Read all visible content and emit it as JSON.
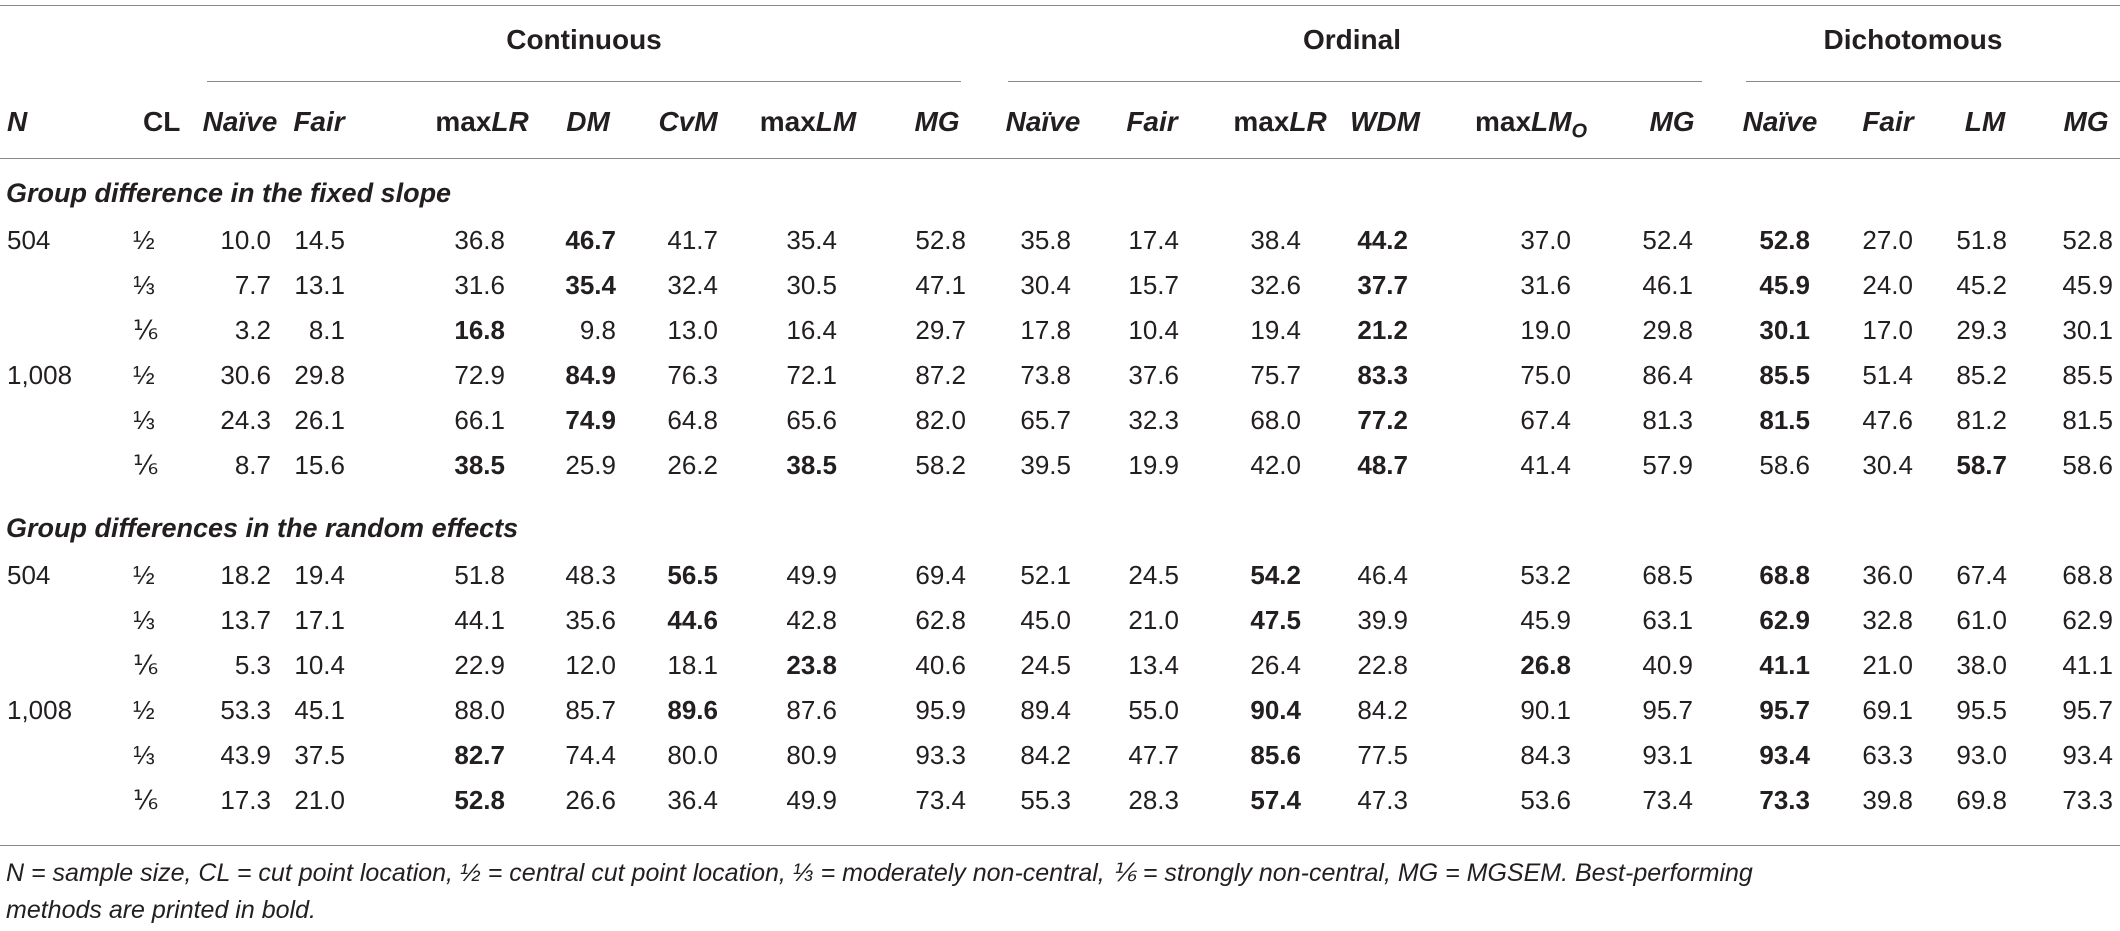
{
  "groups": [
    "Continuous",
    "Ordinal",
    "Dichotomous"
  ],
  "headers": [
    {
      "pre": "N",
      "it": "",
      "sub": "",
      "all_italic": true
    },
    {
      "pre": "CL",
      "it": "",
      "sub": "",
      "all_italic": false
    },
    {
      "pre": "",
      "it": "Naïve",
      "sub": "",
      "all_italic": true
    },
    {
      "pre": "",
      "it": "Fair",
      "sub": "",
      "all_italic": true
    },
    {
      "pre": "max",
      "it": "LR",
      "sub": "",
      "all_italic": false
    },
    {
      "pre": "",
      "it": "DM",
      "sub": "",
      "all_italic": true
    },
    {
      "pre": "",
      "it": "CvM",
      "sub": "",
      "all_italic": true
    },
    {
      "pre": "max",
      "it": "LM",
      "sub": "",
      "all_italic": false
    },
    {
      "pre": "",
      "it": "MG",
      "sub": "",
      "all_italic": true
    },
    {
      "pre": "",
      "it": "Naïve",
      "sub": "",
      "all_italic": true
    },
    {
      "pre": "",
      "it": "Fair",
      "sub": "",
      "all_italic": true
    },
    {
      "pre": "max",
      "it": "LR",
      "sub": "",
      "all_italic": false
    },
    {
      "pre": "",
      "it": "WDM",
      "sub": "",
      "all_italic": true
    },
    {
      "pre": "max",
      "it": "LM",
      "sub": "O",
      "all_italic": false
    },
    {
      "pre": "",
      "it": "MG",
      "sub": "",
      "all_italic": true
    },
    {
      "pre": "",
      "it": "Naïve",
      "sub": "",
      "all_italic": true
    },
    {
      "pre": "",
      "it": "Fair",
      "sub": "",
      "all_italic": true
    },
    {
      "pre": "",
      "it": "LM",
      "sub": "",
      "all_italic": true
    },
    {
      "pre": "",
      "it": "MG",
      "sub": "",
      "all_italic": true
    }
  ],
  "sections": [
    {
      "title": "Group difference in the fixed slope",
      "rows": [
        {
          "n": "504",
          "cl": "½",
          "values": [
            "10.0",
            "14.5",
            "36.8",
            "46.7",
            "41.7",
            "35.4",
            "52.8",
            "35.8",
            "17.4",
            "38.4",
            "44.2",
            "37.0",
            "52.4",
            "52.8",
            "27.0",
            "51.8",
            "52.8"
          ],
          "bold": [
            3,
            10,
            13
          ]
        },
        {
          "n": "",
          "cl": "⅓",
          "values": [
            "7.7",
            "13.1",
            "31.6",
            "35.4",
            "32.4",
            "30.5",
            "47.1",
            "30.4",
            "15.7",
            "32.6",
            "37.7",
            "31.6",
            "46.1",
            "45.9",
            "24.0",
            "45.2",
            "45.9"
          ],
          "bold": [
            3,
            10,
            13
          ]
        },
        {
          "n": "",
          "cl": "⅙",
          "values": [
            "3.2",
            "8.1",
            "16.8",
            "9.8",
            "13.0",
            "16.4",
            "29.7",
            "17.8",
            "10.4",
            "19.4",
            "21.2",
            "19.0",
            "29.8",
            "30.1",
            "17.0",
            "29.3",
            "30.1"
          ],
          "bold": [
            2,
            10,
            13
          ]
        },
        {
          "n": "1,008",
          "cl": "½",
          "values": [
            "30.6",
            "29.8",
            "72.9",
            "84.9",
            "76.3",
            "72.1",
            "87.2",
            "73.8",
            "37.6",
            "75.7",
            "83.3",
            "75.0",
            "86.4",
            "85.5",
            "51.4",
            "85.2",
            "85.5"
          ],
          "bold": [
            3,
            10,
            13
          ]
        },
        {
          "n": "",
          "cl": "⅓",
          "values": [
            "24.3",
            "26.1",
            "66.1",
            "74.9",
            "64.8",
            "65.6",
            "82.0",
            "65.7",
            "32.3",
            "68.0",
            "77.2",
            "67.4",
            "81.3",
            "81.5",
            "47.6",
            "81.2",
            "81.5"
          ],
          "bold": [
            3,
            10,
            13
          ]
        },
        {
          "n": "",
          "cl": "⅙",
          "values": [
            "8.7",
            "15.6",
            "38.5",
            "25.9",
            "26.2",
            "38.5",
            "58.2",
            "39.5",
            "19.9",
            "42.0",
            "48.7",
            "41.4",
            "57.9",
            "58.6",
            "30.4",
            "58.7",
            "58.6"
          ],
          "bold": [
            2,
            5,
            10,
            15
          ]
        }
      ]
    },
    {
      "title": "Group differences in the random effects",
      "rows": [
        {
          "n": "504",
          "cl": "½",
          "values": [
            "18.2",
            "19.4",
            "51.8",
            "48.3",
            "56.5",
            "49.9",
            "69.4",
            "52.1",
            "24.5",
            "54.2",
            "46.4",
            "53.2",
            "68.5",
            "68.8",
            "36.0",
            "67.4",
            "68.8"
          ],
          "bold": [
            4,
            9,
            13
          ]
        },
        {
          "n": "",
          "cl": "⅓",
          "values": [
            "13.7",
            "17.1",
            "44.1",
            "35.6",
            "44.6",
            "42.8",
            "62.8",
            "45.0",
            "21.0",
            "47.5",
            "39.9",
            "45.9",
            "63.1",
            "62.9",
            "32.8",
            "61.0",
            "62.9"
          ],
          "bold": [
            4,
            9,
            13
          ]
        },
        {
          "n": "",
          "cl": "⅙",
          "values": [
            "5.3",
            "10.4",
            "22.9",
            "12.0",
            "18.1",
            "23.8",
            "40.6",
            "24.5",
            "13.4",
            "26.4",
            "22.8",
            "26.8",
            "40.9",
            "41.1",
            "21.0",
            "38.0",
            "41.1"
          ],
          "bold": [
            5,
            11,
            13
          ]
        },
        {
          "n": "1,008",
          "cl": "½",
          "values": [
            "53.3",
            "45.1",
            "88.0",
            "85.7",
            "89.6",
            "87.6",
            "95.9",
            "89.4",
            "55.0",
            "90.4",
            "84.2",
            "90.1",
            "95.7",
            "95.7",
            "69.1",
            "95.5",
            "95.7"
          ],
          "bold": [
            4,
            9,
            13
          ]
        },
        {
          "n": "",
          "cl": "⅓",
          "values": [
            "43.9",
            "37.5",
            "82.7",
            "74.4",
            "80.0",
            "80.9",
            "93.3",
            "84.2",
            "47.7",
            "85.6",
            "77.5",
            "84.3",
            "93.1",
            "93.4",
            "63.3",
            "93.0",
            "93.4"
          ],
          "bold": [
            2,
            9,
            13
          ]
        },
        {
          "n": "",
          "cl": "⅙",
          "values": [
            "17.3",
            "21.0",
            "52.8",
            "26.6",
            "36.4",
            "49.9",
            "73.4",
            "55.3",
            "28.3",
            "57.4",
            "47.3",
            "53.6",
            "73.4",
            "73.3",
            "39.8",
            "69.8",
            "73.3"
          ],
          "bold": [
            2,
            9,
            13
          ]
        }
      ]
    }
  ],
  "footnote": {
    "line1": "N = sample size, CL = cut point location, ½ = central cut point location, ⅓ = moderately non-central, ⅙ = strongly non-central, MG = MGSEM. Best-performing",
    "line2": "methods are printed in bold."
  }
}
